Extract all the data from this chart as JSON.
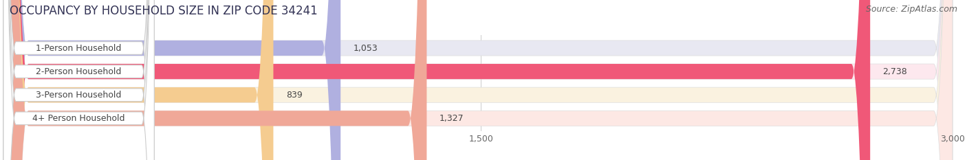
{
  "title": "OCCUPANCY BY HOUSEHOLD SIZE IN ZIP CODE 34241",
  "source": "Source: ZipAtlas.com",
  "categories": [
    "1-Person Household",
    "2-Person Household",
    "3-Person Household",
    "4+ Person Household"
  ],
  "values": [
    1053,
    2738,
    839,
    1327
  ],
  "bar_colors": [
    "#b0b0e0",
    "#f05878",
    "#f5cc90",
    "#f0a898"
  ],
  "bar_bg_colors": [
    "#e8e8f2",
    "#fde8ee",
    "#faf2e0",
    "#fde8e4"
  ],
  "xlim": [
    0,
    3000
  ],
  "xticks": [
    0,
    1500,
    3000
  ],
  "value_labels": [
    "1,053",
    "2,738",
    "839",
    "1,327"
  ],
  "title_fontsize": 12,
  "source_fontsize": 9,
  "label_fontsize": 9,
  "tick_fontsize": 9,
  "background_color": "#ffffff"
}
